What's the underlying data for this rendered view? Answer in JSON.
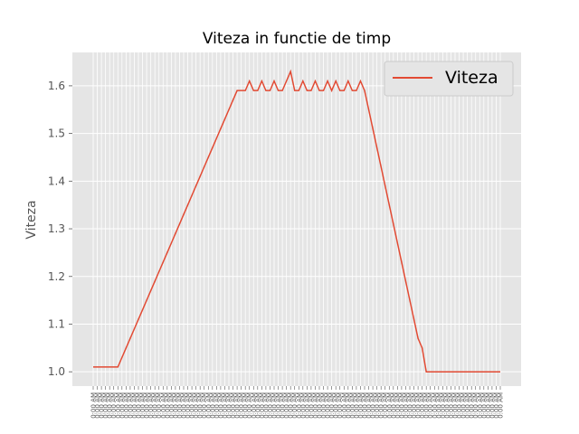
{
  "chart_data": {
    "type": "line",
    "title": "Viteza in functie de timp",
    "xlabel": "",
    "ylabel": "Viteza",
    "ylim": [
      0.97,
      1.67
    ],
    "yticks": [
      1.0,
      1.1,
      1.2,
      1.3,
      1.4,
      1.5,
      1.6
    ],
    "ytick_labels": [
      "1.0",
      "1.1",
      "1.2",
      "1.3",
      "1.4",
      "1.5",
      "1.6"
    ],
    "grid": true,
    "legend_position": "top-right",
    "x_tick_labels_note": "tick labels printed as dense overlapping time strings ending in AM",
    "series": [
      {
        "name": "Viteza",
        "color": "#E24A33",
        "values": [
          1.01,
          1.01,
          1.01,
          1.01,
          1.01,
          1.01,
          1.01,
          1.03,
          1.05,
          1.07,
          1.09,
          1.11,
          1.13,
          1.15,
          1.17,
          1.19,
          1.21,
          1.23,
          1.25,
          1.27,
          1.29,
          1.31,
          1.33,
          1.35,
          1.37,
          1.39,
          1.41,
          1.43,
          1.45,
          1.47,
          1.49,
          1.51,
          1.53,
          1.55,
          1.57,
          1.59,
          1.59,
          1.59,
          1.61,
          1.59,
          1.59,
          1.61,
          1.59,
          1.59,
          1.61,
          1.59,
          1.59,
          1.61,
          1.63,
          1.59,
          1.59,
          1.61,
          1.59,
          1.59,
          1.61,
          1.59,
          1.59,
          1.61,
          1.59,
          1.61,
          1.59,
          1.59,
          1.61,
          1.59,
          1.59,
          1.61,
          1.59,
          1.55,
          1.51,
          1.47,
          1.43,
          1.39,
          1.35,
          1.31,
          1.27,
          1.23,
          1.19,
          1.15,
          1.11,
          1.07,
          1.05,
          1.0,
          1.0,
          1.0,
          1.0,
          1.0,
          1.0,
          1.0,
          1.0,
          1.0,
          1.0,
          1.0,
          1.0,
          1.0,
          1.0,
          1.0,
          1.0,
          1.0,
          1.0,
          1.0
        ]
      }
    ]
  }
}
